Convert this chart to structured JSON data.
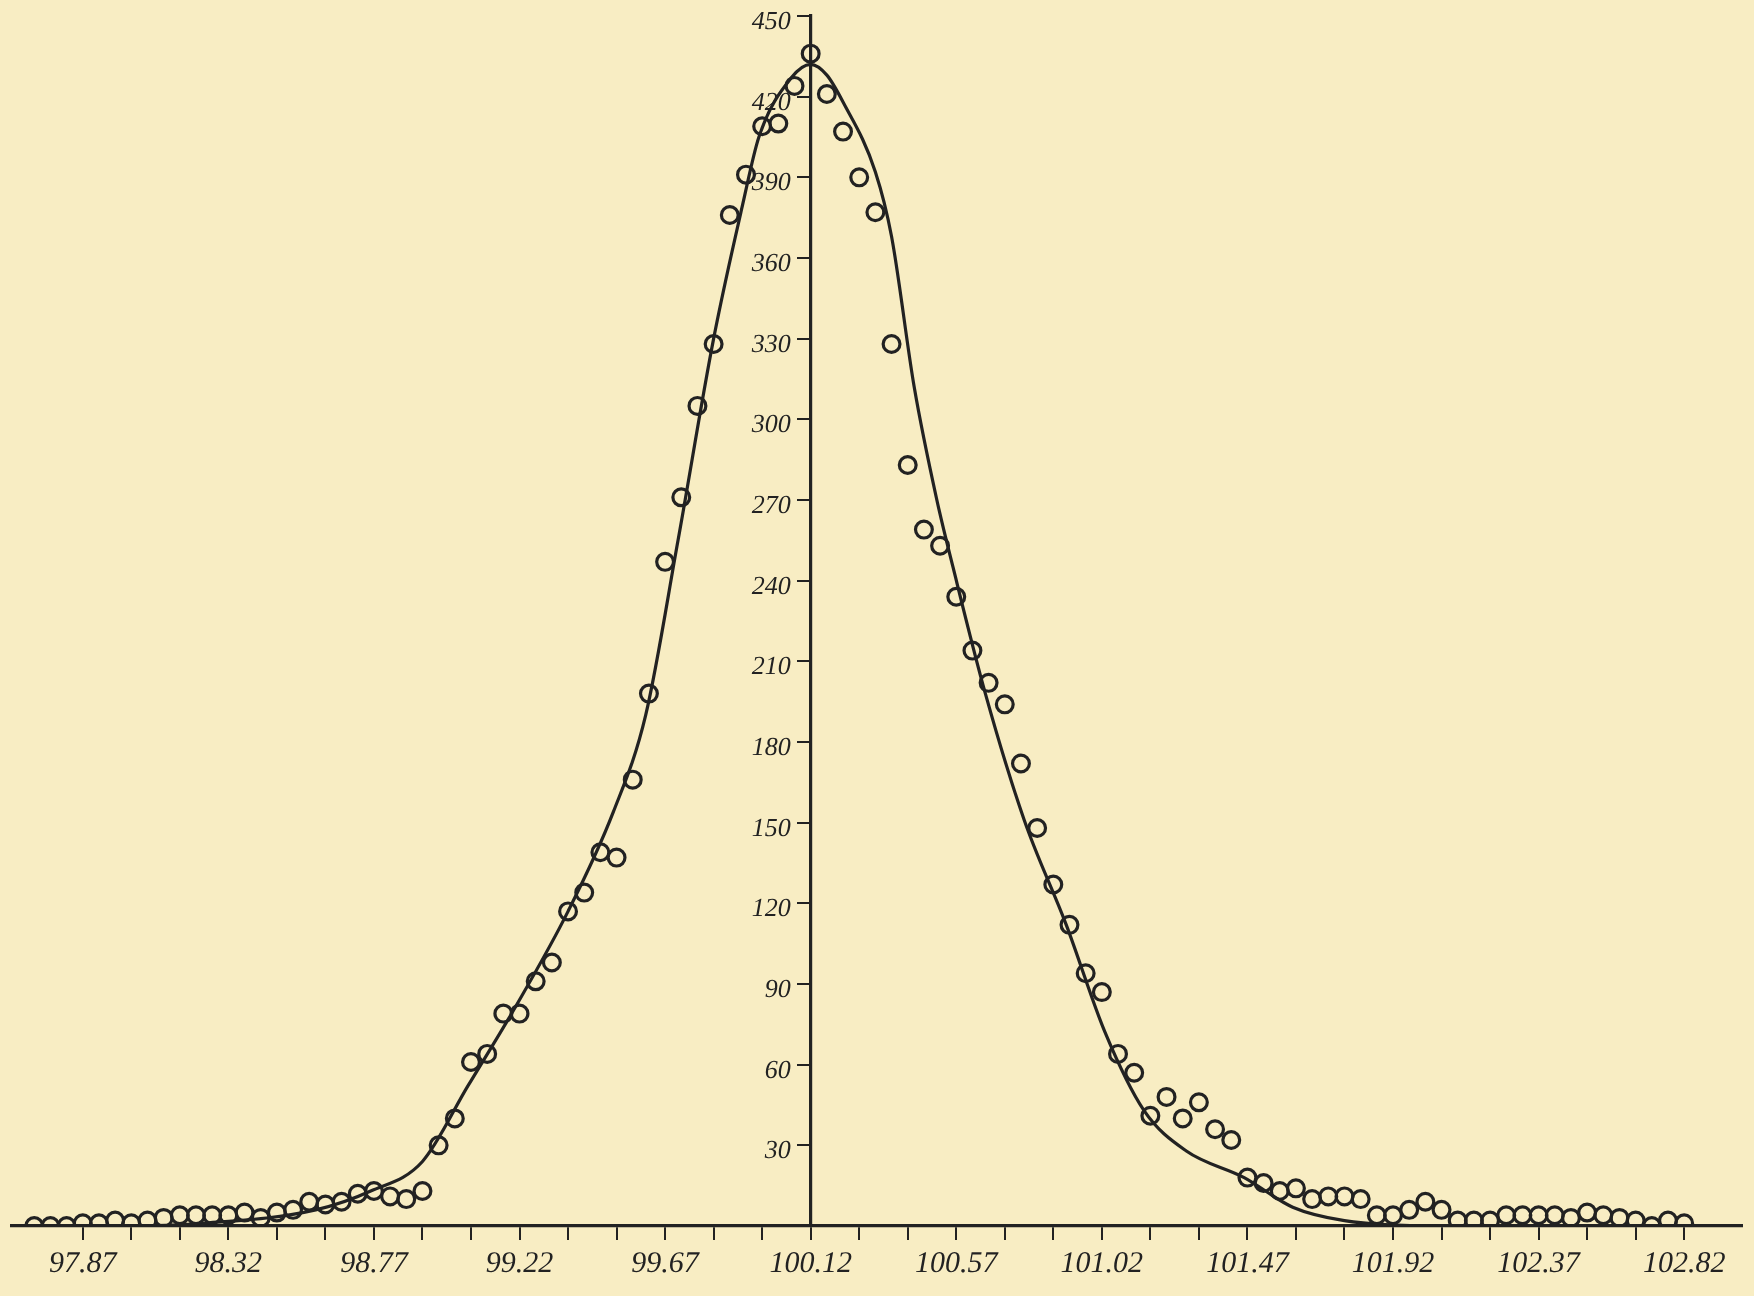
{
  "chart_data": {
    "type": "scatter",
    "grid": false,
    "legend": false,
    "xlim": [
      97.65,
      103.0
    ],
    "ylim": [
      0,
      450
    ],
    "xticks": [
      97.87,
      {
        "value": 98.02,
        "label": null
      },
      {
        "value": 98.17,
        "label": null
      },
      98.32,
      {
        "value": 98.47,
        "label": null
      },
      {
        "value": 98.62,
        "label": null
      },
      98.77,
      {
        "value": 98.92,
        "label": null
      },
      {
        "value": 99.07,
        "label": null
      },
      99.22,
      {
        "value": 99.37,
        "label": null
      },
      {
        "value": 99.52,
        "label": null
      },
      99.67,
      {
        "value": 99.82,
        "label": null
      },
      {
        "value": 99.97,
        "label": null
      },
      100.12,
      {
        "value": 100.27,
        "label": null
      },
      {
        "value": 100.42,
        "label": null
      },
      100.57,
      {
        "value": 100.72,
        "label": null
      },
      {
        "value": 100.87,
        "label": null
      },
      101.02,
      {
        "value": 101.17,
        "label": null
      },
      {
        "value": 101.32,
        "label": null
      },
      101.47,
      {
        "value": 101.62,
        "label": null
      },
      {
        "value": 101.77,
        "label": null
      },
      101.92,
      {
        "value": 102.07,
        "label": null
      },
      {
        "value": 102.22,
        "label": null
      },
      102.37,
      {
        "value": 102.52,
        "label": null
      },
      {
        "value": 102.67,
        "label": null
      },
      102.82
    ],
    "yticks": [
      30,
      60,
      90,
      120,
      150,
      180,
      210,
      240,
      270,
      300,
      330,
      360,
      390,
      420,
      450
    ],
    "series": [
      {
        "type": "scatter",
        "marker": "circle",
        "color": "#222222",
        "x": [
          97.72,
          97.77,
          97.82,
          97.87,
          97.92,
          97.97,
          98.02,
          98.07,
          98.12,
          98.17,
          98.22,
          98.27,
          98.32,
          98.37,
          98.42,
          98.47,
          98.52,
          98.57,
          98.62,
          98.67,
          98.72,
          98.77,
          98.82,
          98.87,
          98.92,
          98.97,
          99.02,
          99.07,
          99.12,
          99.17,
          99.22,
          99.27,
          99.32,
          99.37,
          99.42,
          99.47,
          99.52,
          99.57,
          99.62,
          99.67,
          99.72,
          99.77,
          99.82,
          99.87,
          99.92,
          99.97,
          100.02,
          100.07,
          100.12,
          100.17,
          100.22,
          100.27,
          100.32,
          100.37,
          100.42,
          100.47,
          100.52,
          100.57,
          100.62,
          100.67,
          100.72,
          100.77,
          100.82,
          100.87,
          100.92,
          100.97,
          101.02,
          101.07,
          101.12,
          101.17,
          101.22,
          101.27,
          101.32,
          101.37,
          101.42,
          101.47,
          101.52,
          101.57,
          101.62,
          101.67,
          101.72,
          101.77,
          101.82,
          101.87,
          101.92,
          101.97,
          102.02,
          102.07,
          102.12,
          102.17,
          102.22,
          102.27,
          102.32,
          102.37,
          102.42,
          102.47,
          102.52,
          102.57,
          102.62,
          102.67,
          102.72,
          102.77,
          102.82
        ],
        "values": [
          0,
          0,
          0,
          1,
          1,
          2,
          1,
          2,
          3,
          4,
          4,
          4,
          4,
          5,
          3,
          5,
          6,
          9,
          8,
          9,
          12,
          13,
          11,
          10,
          13,
          30,
          40,
          61,
          64,
          79,
          79,
          91,
          98,
          117,
          124,
          139,
          137,
          166,
          198,
          247,
          271,
          305,
          328,
          376,
          391,
          409,
          410,
          424,
          436,
          421,
          407,
          390,
          377,
          328,
          283,
          259,
          253,
          234,
          214,
          202,
          194,
          172,
          148,
          127,
          112,
          94,
          87,
          64,
          57,
          41,
          48,
          40,
          46,
          36,
          32,
          18,
          16,
          13,
          14,
          10,
          11,
          11,
          10,
          4,
          4,
          6,
          9,
          6,
          2,
          2,
          2,
          4,
          4,
          4,
          4,
          3,
          5,
          4,
          3,
          2,
          0,
          2,
          1
        ]
      },
      {
        "type": "line",
        "color": "#222222",
        "x": [
          97.72,
          98.0,
          98.24,
          98.59,
          98.76,
          98.92,
          99.06,
          99.21,
          99.37,
          99.51,
          99.61,
          99.71,
          99.82,
          99.91,
          99.96,
          100.06,
          100.12,
          100.17,
          100.22,
          100.32,
          100.37,
          100.44,
          100.51,
          100.56,
          100.66,
          100.78,
          100.91,
          101.03,
          101.15,
          101.28,
          101.46,
          101.61,
          101.77,
          102.06,
          102.82
        ],
        "values": [
          0,
          0,
          1,
          6,
          13,
          24,
          52,
          82,
          117,
          154,
          190,
          255,
          330,
          380,
          405,
          427,
          432,
          428,
          418,
          392,
          368,
          312,
          270,
          245,
          198,
          151,
          112,
          72,
          43,
          28,
          18,
          7,
          2,
          0,
          0
        ]
      }
    ]
  }
}
